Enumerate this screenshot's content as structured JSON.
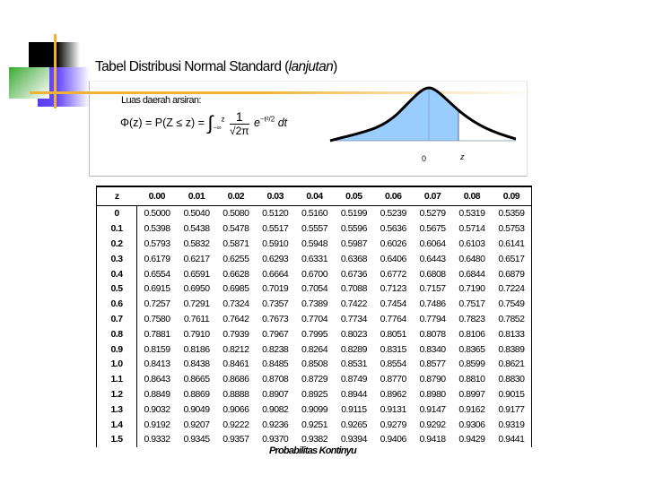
{
  "slide": {
    "title_main": "Tabel Distribusi Normal Standard (",
    "title_italic": "lanjutan",
    "title_end": ")",
    "figure": {
      "caption": "Luas daerah arsiran:",
      "formula_lhs": "Φ(z) = P(Z ≤ z) = ",
      "integral": "∫",
      "int_upper": "z",
      "int_lower": "−∞",
      "frac_num": "1",
      "frac_den": "√2π",
      "exp_base": "e",
      "exp_power": "−t²/2",
      "dt": "dt",
      "axis_label_zero": "0",
      "axis_label_z": "z",
      "shade_color": "#99ccff"
    },
    "table": {
      "headers": [
        "z",
        "0.00",
        "0.01",
        "0.02",
        "0.03",
        "0.04",
        "0.05",
        "0.06",
        "0.07",
        "0.08",
        "0.09"
      ],
      "rows": [
        [
          "0",
          "0.5000",
          "0.5040",
          "0.5080",
          "0.5120",
          "0.5160",
          "0.5199",
          "0.5239",
          "0.5279",
          "0.5319",
          "0.5359"
        ],
        [
          "0.1",
          "0.5398",
          "0.5438",
          "0.5478",
          "0.5517",
          "0.5557",
          "0.5596",
          "0.5636",
          "0.5675",
          "0.5714",
          "0.5753"
        ],
        [
          "0.2",
          "0.5793",
          "0.5832",
          "0.5871",
          "0.5910",
          "0.5948",
          "0.5987",
          "0.6026",
          "0.6064",
          "0.6103",
          "0.6141"
        ],
        [
          "0.3",
          "0.6179",
          "0.6217",
          "0.6255",
          "0.6293",
          "0.6331",
          "0.6368",
          "0.6406",
          "0.6443",
          "0.6480",
          "0.6517"
        ],
        [
          "0.4",
          "0.6554",
          "0.6591",
          "0.6628",
          "0.6664",
          "0.6700",
          "0.6736",
          "0.6772",
          "0.6808",
          "0.6844",
          "0.6879"
        ],
        [
          "0.5",
          "0.6915",
          "0.6950",
          "0.6985",
          "0.7019",
          "0.7054",
          "0.7088",
          "0.7123",
          "0.7157",
          "0.7190",
          "0.7224"
        ],
        [
          "0.6",
          "0.7257",
          "0.7291",
          "0.7324",
          "0.7357",
          "0.7389",
          "0.7422",
          "0.7454",
          "0.7486",
          "0.7517",
          "0.7549"
        ],
        [
          "0.7",
          "0.7580",
          "0.7611",
          "0.7642",
          "0.7673",
          "0.7704",
          "0.7734",
          "0.7764",
          "0.7794",
          "0.7823",
          "0.7852"
        ],
        [
          "0.8",
          "0.7881",
          "0.7910",
          "0.7939",
          "0.7967",
          "0.7995",
          "0.8023",
          "0.8051",
          "0.8078",
          "0.8106",
          "0.8133"
        ],
        [
          "0.9",
          "0.8159",
          "0.8186",
          "0.8212",
          "0.8238",
          "0.8264",
          "0.8289",
          "0.8315",
          "0.8340",
          "0.8365",
          "0.8389"
        ],
        [
          "1.0",
          "0.8413",
          "0.8438",
          "0.8461",
          "0.8485",
          "0.8508",
          "0.8531",
          "0.8554",
          "0.8577",
          "0.8599",
          "0.8621"
        ],
        [
          "1.1",
          "0.8643",
          "0.8665",
          "0.8686",
          "0.8708",
          "0.8729",
          "0.8749",
          "0.8770",
          "0.8790",
          "0.8810",
          "0.8830"
        ],
        [
          "1.2",
          "0.8849",
          "0.8869",
          "0.8888",
          "0.8907",
          "0.8925",
          "0.8944",
          "0.8962",
          "0.8980",
          "0.8997",
          "0.9015"
        ],
        [
          "1.3",
          "0.9032",
          "0.9049",
          "0.9066",
          "0.9082",
          "0.9099",
          "0.9115",
          "0.9131",
          "0.9147",
          "0.9162",
          "0.9177"
        ],
        [
          "1.4",
          "0.9192",
          "0.9207",
          "0.9222",
          "0.9236",
          "0.9251",
          "0.9265",
          "0.9279",
          "0.9292",
          "0.9306",
          "0.9319"
        ],
        [
          "1.5",
          "0.9332",
          "0.9345",
          "0.9357",
          "0.9370",
          "0.9382",
          "0.9394",
          "0.9406",
          "0.9418",
          "0.9429",
          "0.9441"
        ]
      ]
    },
    "footer": "Probabilitas Kontinyu",
    "colors": {
      "accent_line": "#f0b232",
      "deco_blue": "#6a4cff",
      "deco_green": "#3aaa35"
    }
  }
}
